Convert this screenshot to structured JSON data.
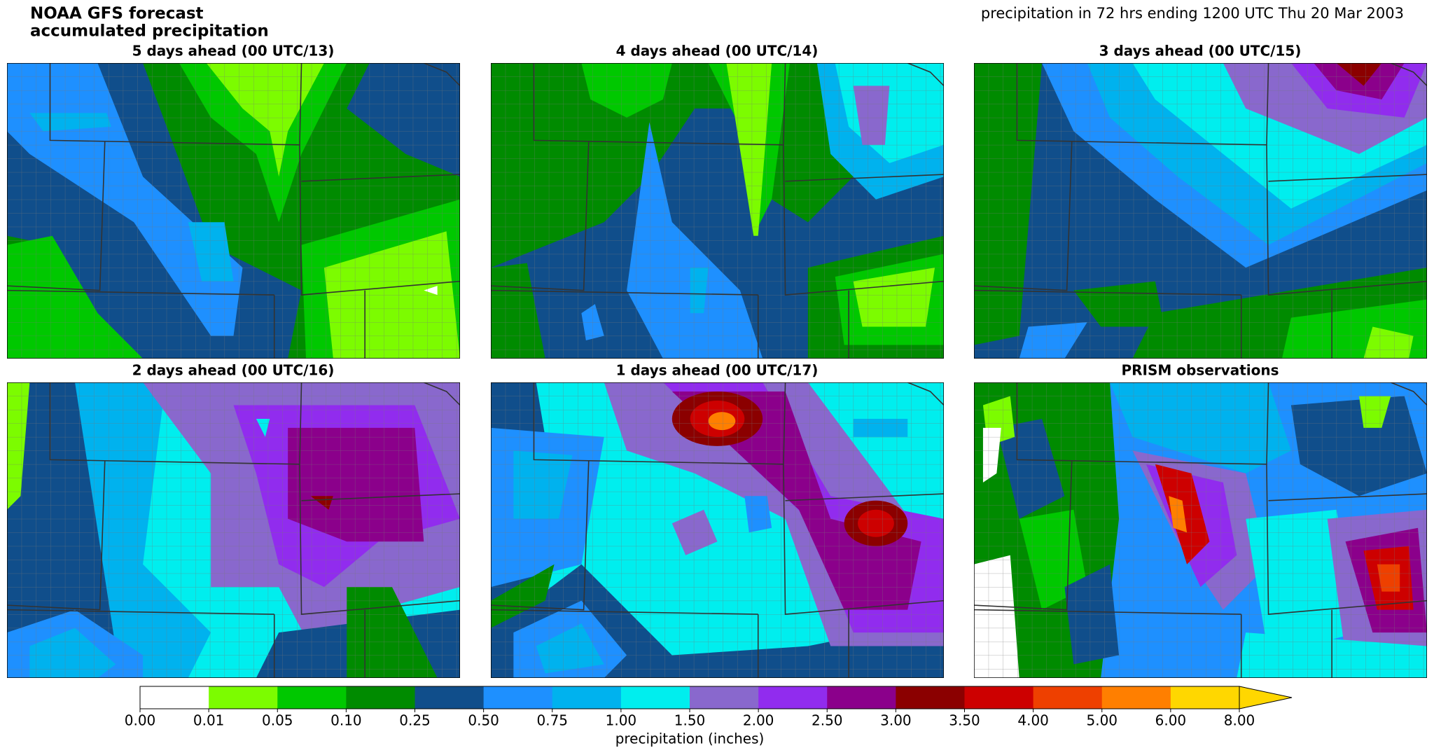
{
  "title_lines": [
    "NOAA GFS forecast",
    "accumulated precipitation"
  ],
  "subtitle": "precipitation in 72 hrs ending 1200 UTC Thu 20 Mar 2003",
  "panels": [
    {
      "title": "5 days ahead (00 UTC/13)"
    },
    {
      "title": "4 days ahead (00 UTC/14)"
    },
    {
      "title": "3 days ahead (00 UTC/15)"
    },
    {
      "title": "2 days ahead (00 UTC/16)"
    },
    {
      "title": "1 days ahead (00 UTC/17)"
    },
    {
      "title": "PRISM observations"
    }
  ],
  "colorbar": {
    "label": "precipitation (inches)",
    "extend": "max",
    "ticks": [
      {
        "value": 0,
        "label": "0.00"
      },
      {
        "value": 0.01,
        "label": "0.01"
      },
      {
        "value": 0.05,
        "label": "0.05"
      },
      {
        "value": 0.1,
        "label": "0.10"
      },
      {
        "value": 0.25,
        "label": "0.25"
      },
      {
        "value": 0.5,
        "label": "0.50"
      },
      {
        "value": 0.75,
        "label": "0.75"
      },
      {
        "value": 1,
        "label": "1.00"
      },
      {
        "value": 1.5,
        "label": "1.50"
      },
      {
        "value": 2,
        "label": "2.00"
      },
      {
        "value": 2.5,
        "label": "2.50"
      },
      {
        "value": 3,
        "label": "3.00"
      },
      {
        "value": 3.5,
        "label": "3.50"
      },
      {
        "value": 4,
        "label": "4.00"
      },
      {
        "value": 5,
        "label": "5.00"
      },
      {
        "value": 6,
        "label": "6.00"
      },
      {
        "value": 8,
        "label": "8.00"
      }
    ],
    "colors": [
      "#ffffff",
      "#7cfc00",
      "#00c800",
      "#008b00",
      "#104e8b",
      "#1e90ff",
      "#00b2ee",
      "#00eeee",
      "#8968cd",
      "#912cee",
      "#8b008b",
      "#8b0000",
      "#cd0000",
      "#ee4000",
      "#ff7f00",
      "#ffd700"
    ]
  }
}
